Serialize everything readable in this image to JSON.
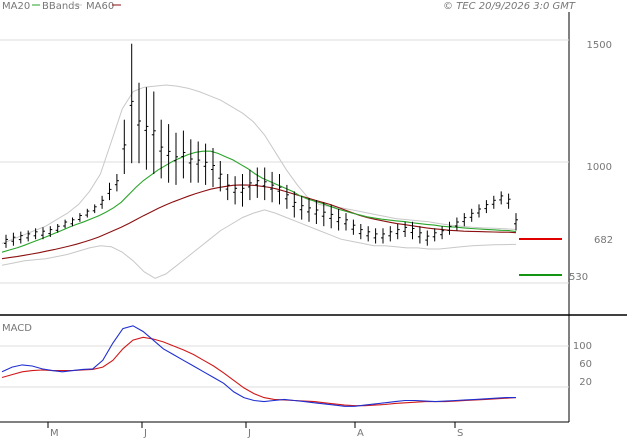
{
  "header": {
    "legend": [
      {
        "label": "MA20",
        "color": "#2aa52a"
      },
      {
        "label": "BBands",
        "color": "#c8c8c8"
      },
      {
        "label": "MA60",
        "color": "#8b1010"
      }
    ],
    "copyright": "© TEC 20/9/2026 3:0 GMT"
  },
  "colors": {
    "price": "#000000",
    "ma20": "#2aa52a",
    "ma60": "#8b1010",
    "bbands": "#c8c8c8",
    "macd": "#1f2fd0",
    "signal": "#d01818",
    "resistance": "#e00000",
    "support": "#139413",
    "grid": "#dcdcdc",
    "axis": "#000000"
  },
  "chart_data": [
    {
      "type": "ohlc",
      "title": "",
      "x_ticks": [
        "M",
        "J",
        "J",
        "A",
        "S"
      ],
      "y_ticks": [
        "1500",
        "1000"
      ],
      "ylim": [
        320,
        1600
      ],
      "levels": [
        {
          "name": "resistance",
          "label": "682",
          "value": 682
        },
        {
          "name": "support",
          "label": "530",
          "value": 530
        }
      ],
      "series": [
        {
          "name": "MA20",
          "values": [
            540,
            550,
            560,
            572,
            585,
            598,
            612,
            626,
            640,
            655,
            668,
            680,
            694,
            708,
            725,
            745,
            770,
            805,
            840,
            870,
            895,
            920,
            940,
            960,
            975,
            990,
            1000,
            1005,
            1005,
            995,
            980,
            965,
            945,
            925,
            900,
            880,
            865,
            850,
            835,
            820,
            800,
            785,
            775,
            765,
            752,
            740,
            730,
            720,
            712,
            703,
            697,
            692,
            688,
            684,
            681,
            676,
            672,
            668,
            665,
            660,
            657,
            655,
            652,
            649,
            647,
            645,
            643,
            641,
            640,
            635
          ]
        },
        {
          "name": "MA60",
          "values": [
            510,
            515,
            520,
            526,
            532,
            538,
            545,
            552,
            560,
            568,
            577,
            587,
            598,
            610,
            625,
            640,
            655,
            672,
            690,
            708,
            725,
            742,
            758,
            772,
            785,
            798,
            810,
            820,
            830,
            837,
            843,
            848,
            850,
            849,
            847,
            843,
            838,
            830,
            820,
            810,
            800,
            790,
            780,
            770,
            760,
            748,
            735,
            722,
            710,
            700,
            692,
            685,
            678,
            672,
            667,
            662,
            657,
            652,
            648,
            645,
            641,
            639,
            637,
            636,
            635,
            634,
            633,
            632,
            632,
            630
          ]
        },
        {
          "name": "BBands upper",
          "values": [
            580,
            600,
            620,
            640,
            660,
            690,
            720,
            760,
            820,
            900,
            1050,
            1200,
            1280,
            1300,
            1305,
            1310,
            1305,
            1295,
            1280,
            1260,
            1240,
            1210,
            1180,
            1140,
            1080,
            1000,
            920,
            850,
            790,
            760,
            750,
            745,
            735,
            725,
            715,
            705,
            695,
            690,
            685,
            680,
            672,
            665,
            660,
            655,
            652,
            650,
            648,
            645
          ]
        },
        {
          "name": "BBands lower",
          "values": [
            480,
            490,
            500,
            505,
            510,
            520,
            530,
            545,
            560,
            570,
            565,
            540,
            500,
            450,
            420,
            440,
            480,
            520,
            560,
            600,
            640,
            670,
            700,
            720,
            735,
            720,
            700,
            680,
            660,
            640,
            620,
            600,
            590,
            580,
            570,
            570,
            565,
            560,
            560,
            555,
            555,
            560,
            565,
            570,
            572,
            574,
            575,
            576
          ]
        },
        {
          "name": "Price high",
          "values": [
            620,
            630,
            635,
            640,
            650,
            655,
            660,
            670,
            690,
            700,
            720,
            740,
            760,
            800,
            860,
            900,
            1150,
            1500,
            1320,
            1300,
            1280,
            1150,
            1130,
            1090,
            1100,
            1060,
            1050,
            1040,
            1020,
            960,
            900,
            890,
            900,
            920,
            930,
            930,
            910,
            900,
            850,
            820,
            800,
            790,
            780,
            770,
            760,
            740,
            720,
            690,
            670,
            660,
            650,
            650,
            660,
            670,
            680,
            680,
            660,
            640,
            650,
            660,
            680,
            700,
            720,
            740,
            760,
            780,
            800,
            820,
            810,
            720
          ]
        },
        {
          "name": "Price low",
          "values": [
            560,
            570,
            580,
            590,
            600,
            600,
            610,
            630,
            650,
            660,
            680,
            700,
            720,
            740,
            780,
            820,
            900,
            950,
            950,
            920,
            900,
            880,
            860,
            850,
            880,
            860,
            860,
            850,
            840,
            820,
            780,
            760,
            750,
            780,
            790,
            780,
            770,
            760,
            740,
            700,
            690,
            680,
            670,
            660,
            650,
            640,
            640,
            620,
            600,
            590,
            580,
            580,
            590,
            600,
            610,
            600,
            580,
            570,
            590,
            600,
            620,
            640,
            660,
            680,
            700,
            720,
            740,
            760,
            740,
            640
          ]
        }
      ]
    },
    {
      "type": "line",
      "title": "MACD",
      "y_ticks": [
        "100",
        "60",
        "20"
      ],
      "ylim": [
        -30,
        130
      ],
      "series": [
        {
          "name": "MACD",
          "values": [
            40,
            48,
            52,
            50,
            45,
            42,
            40,
            42,
            44,
            45,
            60,
            90,
            115,
            120,
            110,
            95,
            80,
            70,
            60,
            50,
            40,
            30,
            20,
            5,
            -5,
            -10,
            -12,
            -10,
            -8,
            -10,
            -12,
            -14,
            -16,
            -18,
            -20,
            -20,
            -18,
            -16,
            -14,
            -12,
            -10,
            -10,
            -11,
            -12,
            -11,
            -10,
            -9,
            -8,
            -7,
            -6,
            -5,
            -5
          ]
        },
        {
          "name": "Signal",
          "values": [
            30,
            35,
            40,
            42,
            43,
            42,
            42,
            42,
            43,
            44,
            48,
            60,
            80,
            95,
            100,
            97,
            92,
            85,
            78,
            70,
            60,
            50,
            38,
            25,
            12,
            2,
            -5,
            -8,
            -9,
            -10,
            -11,
            -12,
            -14,
            -16,
            -18,
            -19,
            -19,
            -18,
            -17,
            -15,
            -14,
            -13,
            -12,
            -12,
            -12,
            -11,
            -10,
            -9,
            -8,
            -7,
            -6,
            -5
          ]
        }
      ]
    }
  ]
}
